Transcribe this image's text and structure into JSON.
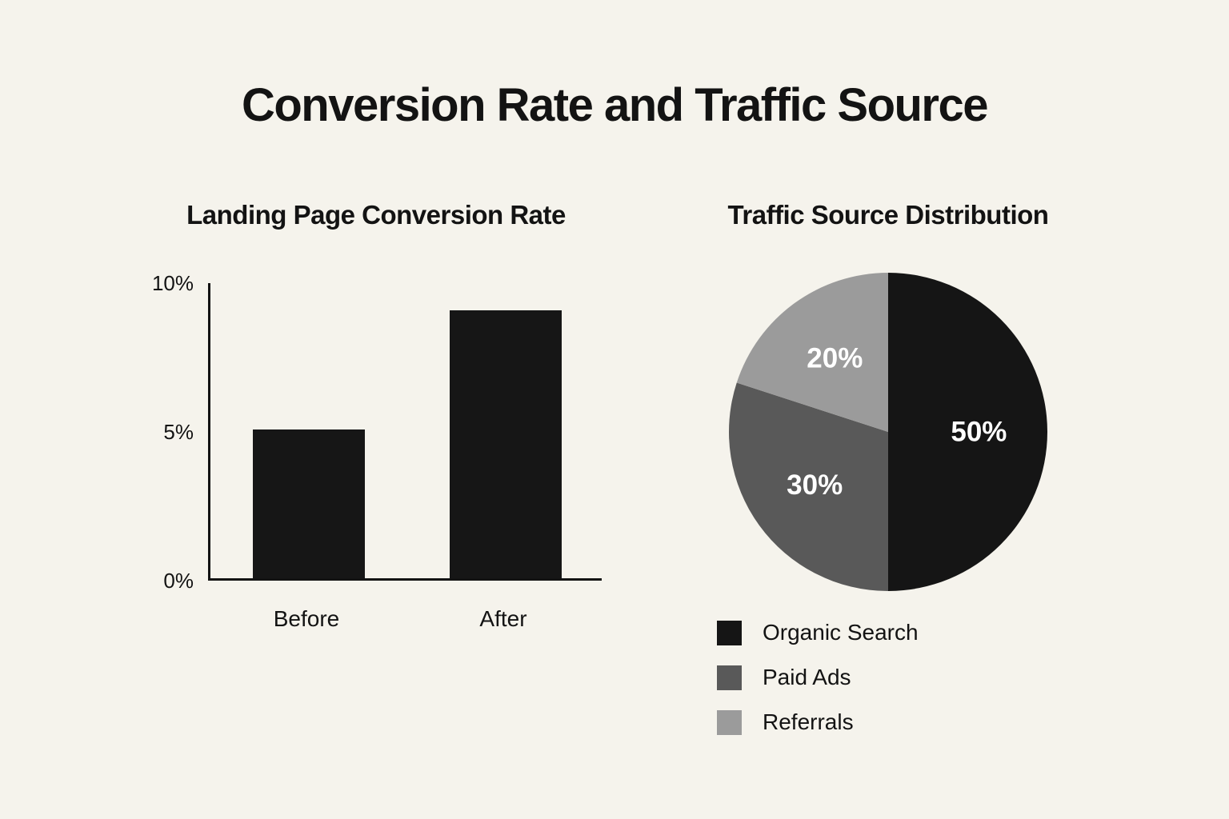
{
  "page": {
    "title": "Conversion Rate and Traffic Source"
  },
  "colors": {
    "background": "#f5f3ec",
    "ink": "#131313"
  },
  "chart_data": [
    {
      "type": "bar",
      "title": "Landing Page Conversion Rate",
      "categories": [
        "Before",
        "After"
      ],
      "values": [
        5,
        9
      ],
      "value_unit": "%",
      "xlabel": "",
      "ylabel": "",
      "ylim": [
        0,
        10
      ],
      "yticks": [
        0,
        5,
        10
      ],
      "ytick_labels": [
        "0%",
        "5%",
        "10%"
      ],
      "grid": false,
      "legend": "none",
      "bar_color": "#161616"
    },
    {
      "type": "pie",
      "title": "Traffic Source Distribution",
      "start_angle": "12-oclock",
      "direction": "clockwise",
      "slices": [
        {
          "label": "Organic Search",
          "value": 50,
          "display_label": "50%",
          "color": "#151515"
        },
        {
          "label": "Paid Ads",
          "value": 30,
          "display_label": "30%",
          "color": "#595959"
        },
        {
          "label": "Referrals",
          "value": 20,
          "display_label": "20%",
          "color": "#9b9b9b"
        }
      ],
      "slice_label_color": "#ffffff",
      "legend_position": "bottom-left"
    }
  ]
}
